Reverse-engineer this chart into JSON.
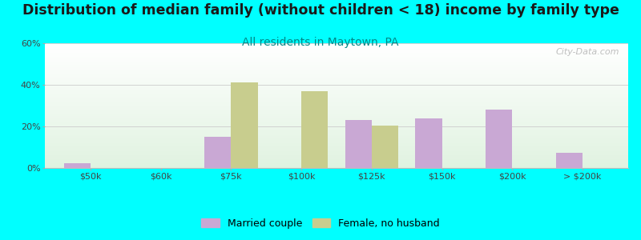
{
  "title": "Distribution of median family (without children < 18) income by family type",
  "subtitle": "All residents in Maytown, PA",
  "categories": [
    "$50k",
    "$60k",
    "$75k",
    "$100k",
    "$125k",
    "$150k",
    "$200k",
    "> $200k"
  ],
  "married_couple": [
    2.5,
    0,
    15,
    0,
    23,
    24,
    28,
    7.5
  ],
  "female_no_husband": [
    0,
    0,
    41,
    37,
    20.5,
    0,
    0,
    0
  ],
  "bar_color_married": "#c9a8d4",
  "bar_color_female": "#c8cd8e",
  "bg_color": "#00ffff",
  "watermark": "City-Data.com",
  "ylim": [
    0,
    60
  ],
  "yticks": [
    0,
    20,
    40,
    60
  ],
  "ytick_labels": [
    "0%",
    "20%",
    "40%",
    "60%"
  ],
  "title_fontsize": 12.5,
  "subtitle_fontsize": 10,
  "subtitle_color": "#008888",
  "tick_color": "#444444",
  "bar_width": 0.38,
  "legend_label_1": "Married couple",
  "legend_label_2": "Female, no husband"
}
